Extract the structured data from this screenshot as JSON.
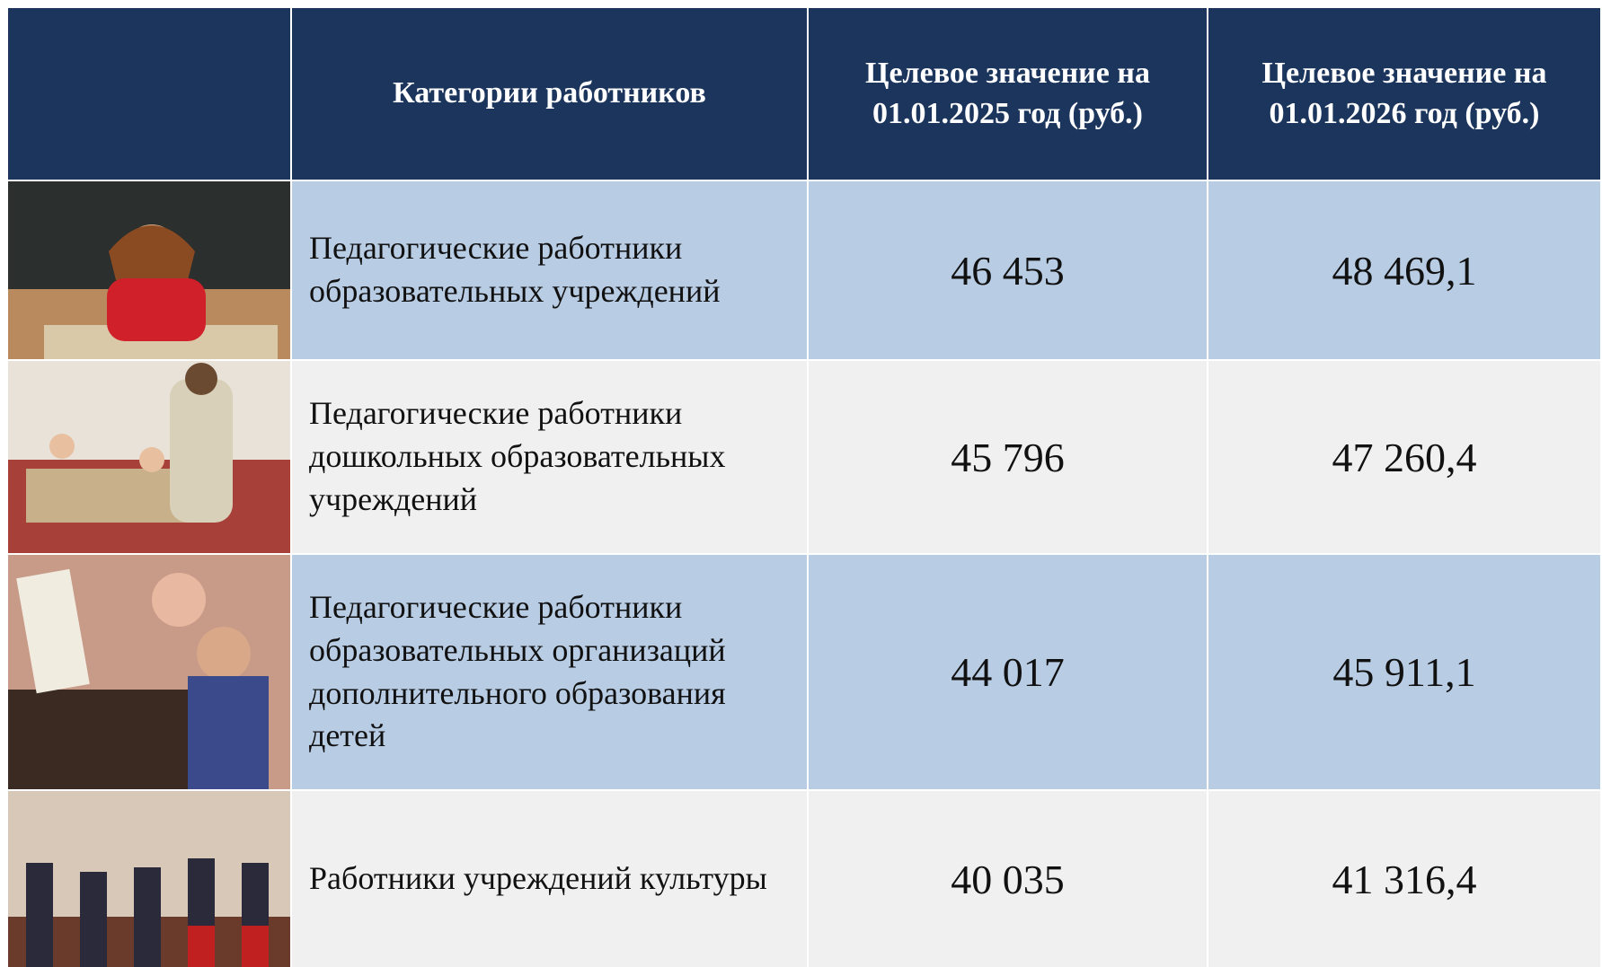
{
  "table": {
    "header": [
      "Категории работников",
      "Целевое значение на 01.01.2025 год (руб.)",
      "Целевое значение на 01.01.2026 год (руб.)"
    ],
    "rows": [
      [
        "Педагогические работники образовательных учреждений",
        "46 453",
        "48 469,1"
      ],
      [
        "Педагогические работники дошкольных образовательных учреждений",
        "45 796",
        "47 260,4"
      ],
      [
        "Педагогические работники образовательных организаций дополнительного образования детей",
        "44 017",
        "45 911,1"
      ],
      [
        "Работники учреждений культуры",
        "40 035",
        "41 316,4"
      ]
    ]
  }
}
